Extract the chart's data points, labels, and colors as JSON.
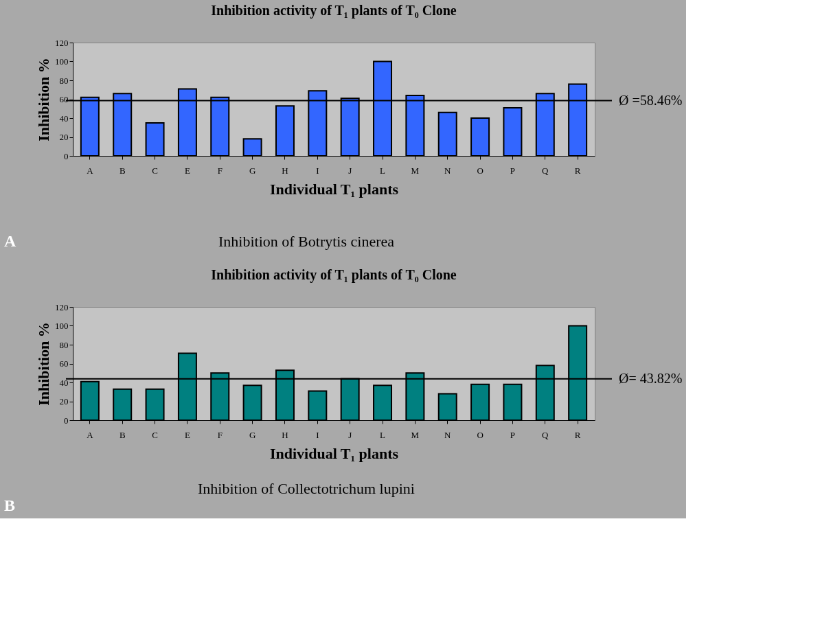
{
  "chart_data": [
    {
      "type": "bar",
      "title": "Inhibition activity of T₁ plants of T₀ Clone",
      "xlabel": "Individual T₁ plants",
      "ylabel": "Inhibition %",
      "categories": [
        "A",
        "B",
        "C",
        "E",
        "F",
        "G",
        "H",
        "I",
        "J",
        "L",
        "M",
        "N",
        "O",
        "P",
        "Q",
        "R"
      ],
      "series": [
        {
          "color": "#3366ff",
          "values": [
            62,
            66,
            35,
            71,
            62,
            18,
            53,
            69,
            61,
            100,
            64,
            46,
            40,
            51,
            66,
            76
          ]
        }
      ],
      "ylim": [
        0,
        120
      ],
      "yticks": [
        0,
        20,
        40,
        60,
        80,
        100,
        120
      ],
      "grid": false,
      "ref_lines": [
        {
          "axis": "y",
          "value": 58.46,
          "label": "Ø =58.46%",
          "color": "#000000"
        }
      ],
      "annotations": [
        "A",
        "Inhibition of Botrytis cinerea"
      ]
    },
    {
      "type": "bar",
      "title": "Inhibition activity of T₁ plants of T₀ Clone",
      "xlabel": "Individual T₁ plants",
      "ylabel": "Inhibition %",
      "categories": [
        "A",
        "B",
        "C",
        "E",
        "F",
        "G",
        "H",
        "I",
        "J",
        "L",
        "M",
        "N",
        "O",
        "P",
        "Q",
        "R"
      ],
      "series": [
        {
          "color": "#008080",
          "values": [
            41,
            33,
            33,
            71,
            50,
            37,
            53,
            31,
            44,
            37,
            50,
            28,
            38,
            38,
            58,
            100
          ]
        }
      ],
      "ylim": [
        0,
        120
      ],
      "yticks": [
        0,
        20,
        40,
        60,
        80,
        100,
        120
      ],
      "grid": false,
      "ref_lines": [
        {
          "axis": "y",
          "value": 43.82,
          "label": "Ø= 43.82%",
          "color": "#000000"
        }
      ],
      "annotations": [
        "B",
        "Inhibition of Collectotrichum lupini"
      ]
    }
  ]
}
